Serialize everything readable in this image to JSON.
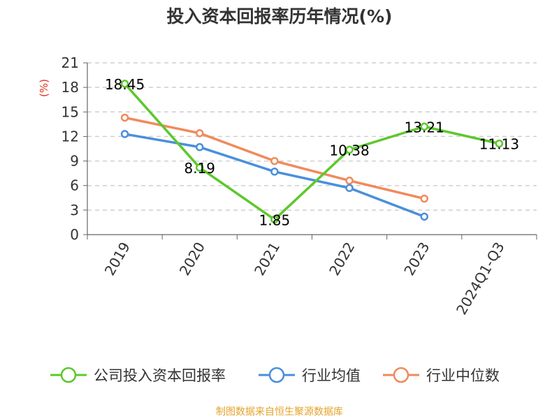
{
  "chart_data": {
    "type": "line",
    "title": "投入资本回报率历年情况(%)",
    "ylabel": "(%)",
    "xlabel": "",
    "categories": [
      "2019",
      "2020",
      "2021",
      "2022",
      "2023",
      "2024Q1-Q3"
    ],
    "ylim": [
      0,
      21
    ],
    "yticks": [
      0,
      3,
      6,
      9,
      12,
      15,
      18,
      21
    ],
    "grid": true,
    "legend_position": "bottom",
    "series": [
      {
        "name": "公司投入资本回报率",
        "color": "#5dc82c",
        "values": [
          18.45,
          8.19,
          1.85,
          10.38,
          13.21,
          11.13
        ],
        "labels": [
          "18.45",
          "8.19",
          "1.85",
          "10.38",
          "13.21",
          "11.13"
        ],
        "show_labels": true
      },
      {
        "name": "行业均值",
        "color": "#4a8fdc",
        "values": [
          12.3,
          10.7,
          7.7,
          5.7,
          2.2,
          null
        ],
        "show_labels": false
      },
      {
        "name": "行业中位数",
        "color": "#f08a5d",
        "values": [
          14.3,
          12.4,
          9.0,
          6.6,
          4.4,
          null
        ],
        "show_labels": false
      }
    ]
  },
  "source": "制图数据来自恒生聚源数据库"
}
